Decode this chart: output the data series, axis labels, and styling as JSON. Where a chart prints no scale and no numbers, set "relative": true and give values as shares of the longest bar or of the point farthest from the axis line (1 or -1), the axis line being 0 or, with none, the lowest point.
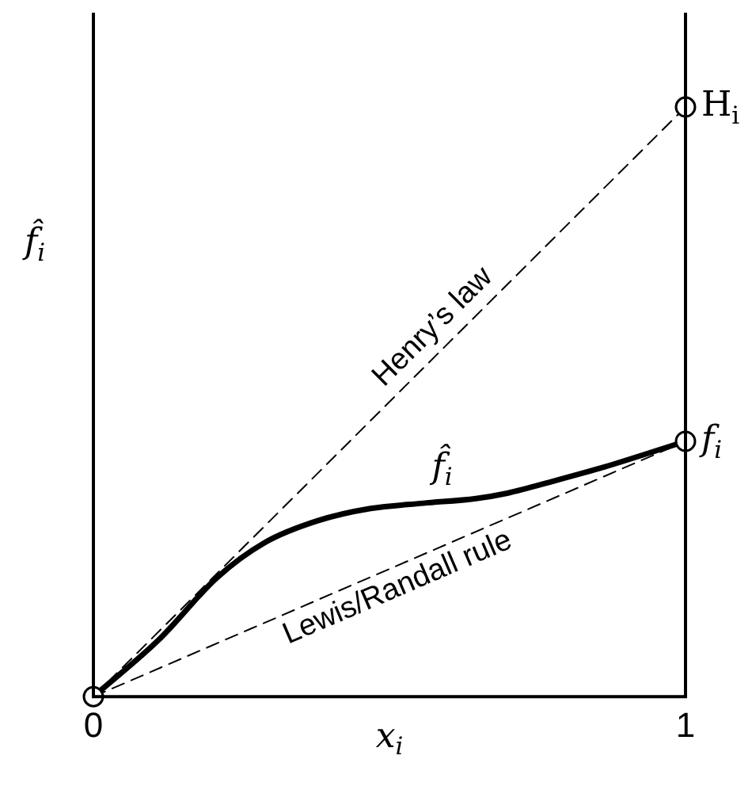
{
  "chart_data": {
    "type": "line",
    "relative": true,
    "xlabel": "x$_{i}$",
    "ylabel": "f̂$_{i}$",
    "xlim": [
      0,
      1
    ],
    "xticks": [
      0,
      1
    ],
    "legend": false,
    "series": [
      {
        "name": "f̂$_{i}$",
        "color": "#000000",
        "line_style": "solid",
        "marker": "none",
        "x": [
          0,
          0.111,
          0.209,
          0.289,
          0.378,
          0.468,
          0.557,
          0.646,
          0.699,
          0.779,
          0.868,
          1
        ],
        "values": [
          0,
          0.097,
          0.202,
          0.261,
          0.298,
          0.319,
          0.328,
          0.336,
          0.345,
          0.366,
          0.391,
          0.433
        ]
      },
      {
        "name": "Henry’s law",
        "color": "#000000",
        "line_style": "dashed",
        "marker": "none",
        "x": [
          0,
          1
        ],
        "values": [
          0,
          1
        ]
      },
      {
        "name": "Lewis/Randall rule",
        "color": "#000000",
        "line_style": "dashed",
        "marker": "none",
        "x": [
          0,
          1
        ],
        "values": [
          0,
          0.433
        ]
      },
      {
        "type": "scatter",
        "color": "#000000",
        "marker": "circle",
        "x": [
          0,
          1,
          1
        ],
        "values": [
          0,
          1,
          0.433
        ]
      }
    ],
    "annotations": [
      {
        "text": "H$_{i}$",
        "x": 1,
        "y": 1
      },
      {
        "text": "f$_{i}$",
        "x": 1,
        "y": 0.433
      }
    ]
  }
}
